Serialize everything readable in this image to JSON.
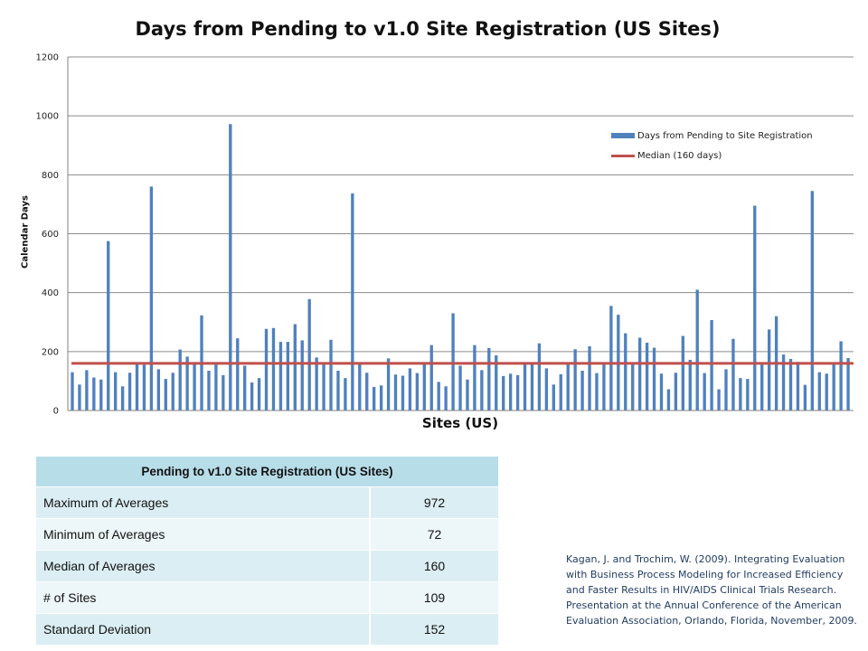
{
  "chart_data": {
    "type": "bar",
    "title": "Days from Pending to v1.0 Site Registration (US Sites)",
    "xlabel": "Sites (US)",
    "ylabel": "Calendar Days",
    "ylim": [
      0,
      1200
    ],
    "yticks": [
      0,
      200,
      400,
      600,
      800,
      1000,
      1200
    ],
    "grid": true,
    "legend_position": "right",
    "series": [
      {
        "name": "Days from Pending to Site Registration",
        "color": "#4f81bd",
        "values": [
          130,
          88,
          137,
          112,
          105,
          575,
          130,
          82,
          128,
          160,
          155,
          760,
          140,
          107,
          128,
          207,
          183,
          160,
          323,
          135,
          160,
          120,
          972,
          245,
          152,
          95,
          110,
          277,
          280,
          233,
          233,
          293,
          238,
          378,
          180,
          160,
          240,
          135,
          110,
          737,
          160,
          128,
          80,
          85,
          177,
          122,
          118,
          143,
          127,
          160,
          222,
          97,
          82,
          330,
          152,
          105,
          222,
          137,
          212,
          187,
          117,
          125,
          120,
          160,
          160,
          228,
          143,
          88,
          123,
          160,
          208,
          135,
          218,
          127,
          160,
          355,
          325,
          262,
          160,
          247,
          230,
          213,
          125,
          72,
          128,
          253,
          172,
          410,
          127,
          307,
          72,
          140,
          243,
          110,
          107,
          695,
          160,
          275,
          320,
          190,
          175,
          165,
          87,
          745,
          130,
          125,
          160,
          235,
          178
        ]
      },
      {
        "name": "Median (160 days)",
        "color": "#c0504d",
        "value": 160
      }
    ]
  },
  "stats_table": {
    "header": "Pending to v1.0 Site Registration (US Sites)",
    "rows": [
      {
        "label": "Maximum of Averages",
        "value": "972"
      },
      {
        "label": "Minimum of Averages",
        "value": "72"
      },
      {
        "label": "Median of Averages",
        "value": "160"
      },
      {
        "label": "# of Sites",
        "value": "109"
      },
      {
        "label": "Standard Deviation",
        "value": "152"
      }
    ]
  },
  "citation": "Kagan, J. and Trochim, W. (2009). Integrating Evaluation with Business Process Modeling for Increased Efficiency and Faster Results in HIV/AIDS Clinical Trials Research. Presentation at the Annual Conference of the American Evaluation Association, Orlando, Florida, November, 2009."
}
